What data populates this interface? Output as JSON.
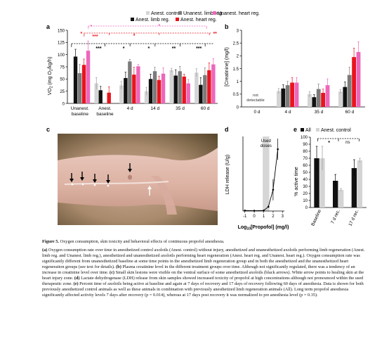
{
  "legend_top": {
    "row1": [
      {
        "label": "Anest. control",
        "color": "#d4d4d4"
      },
      {
        "label": "Unanest. limb reg.",
        "color": "#7b7b7b"
      },
      {
        "label": "Unanest. heart reg.",
        "color": "#ee66bb"
      }
    ],
    "row2": [
      {
        "label": "Anest. limb reg.",
        "color": "#111111"
      },
      {
        "label": "Anest. heart reg.",
        "color": "#e8141e"
      }
    ]
  },
  "panel_a": {
    "letter": "a",
    "ylabel_main": "VO",
    "ylabel_sub2": "2",
    "ylabel_rest": " (mg O",
    "ylabel_sub2b": "2",
    "ylabel_tail": "/kg/h)",
    "yticks": [
      "0",
      "25",
      "50",
      "75",
      "100",
      "125",
      "150"
    ],
    "significance": {
      "single": "*",
      "double": "**",
      "triple": "***"
    },
    "chart_data": {
      "type": "bar",
      "categories": [
        "Unanest. baseline",
        "Anest. baseline",
        "4 d",
        "14 d",
        "35 d",
        "60 d"
      ],
      "ylim": [
        0,
        150
      ],
      "series": [
        {
          "name": "Anest. control",
          "color": "#d4d4d4",
          "values": [
            null,
            41,
            37,
            25,
            68,
            63
          ],
          "err": [
            null,
            12,
            8,
            8,
            4,
            8
          ]
        },
        {
          "name": "Anest. limb reg.",
          "color": "#111111",
          "values": [
            96,
            27,
            52,
            50,
            57,
            38
          ],
          "err": [
            15,
            8,
            12,
            10,
            12,
            15
          ]
        },
        {
          "name": "Unanest. limb reg.",
          "color": "#7b7b7b",
          "values": [
            62,
            null,
            86,
            66,
            66,
            58
          ],
          "err": [
            18,
            null,
            4,
            8,
            10,
            15
          ]
        },
        {
          "name": "Anest. heart reg.",
          "color": "#e8141e",
          "values": [
            79,
            22,
            59,
            48,
            55,
            68
          ],
          "err": [
            12,
            12,
            15,
            8,
            5,
            15
          ]
        },
        {
          "name": "Unanest. heart reg.",
          "color": "#ee66bb",
          "values": [
            108,
            null,
            76,
            61,
            41,
            80
          ],
          "err": [
            20,
            null,
            4,
            12,
            8,
            12
          ]
        }
      ]
    }
  },
  "panel_b": {
    "letter": "b",
    "ylabel": "[Creatinine] (mg/l)",
    "yticks": [
      "0",
      "0.5",
      "1",
      "1.5",
      "2",
      "2.5",
      "3"
    ],
    "not_detectable": [
      "not",
      "detectable"
    ],
    "chart_data": {
      "type": "bar",
      "categories": [
        "0 d",
        "4 d",
        "35 d",
        "60 d"
      ],
      "ylim": [
        0,
        3
      ],
      "series": [
        {
          "name": "Anest. control",
          "color": "#d4d4d4",
          "values": [
            null,
            0.62,
            0.5,
            0.6
          ],
          "err": [
            null,
            0.1,
            0.1,
            0.08
          ]
        },
        {
          "name": "Anest. limb reg.",
          "color": "#111111",
          "values": [
            null,
            0.72,
            0.38,
            0.78
          ],
          "err": [
            null,
            0.15,
            0.1,
            0.2
          ]
        },
        {
          "name": "Unanest. limb reg.",
          "color": "#7b7b7b",
          "values": [
            null,
            0.85,
            0.7,
            1.25
          ],
          "err": [
            null,
            0.15,
            0.2,
            0.3
          ]
        },
        {
          "name": "Anest. heart reg.",
          "color": "#e8141e",
          "values": [
            null,
            0.95,
            0.55,
            1.95
          ],
          "err": [
            null,
            0.2,
            0.15,
            0.35
          ]
        },
        {
          "name": "Unanest. heart reg.",
          "color": "#ee66bb",
          "values": [
            null,
            0.95,
            0.85,
            2.15
          ],
          "err": [
            null,
            0.2,
            0.25,
            0.4
          ]
        }
      ]
    }
  },
  "panel_c": {
    "letter": "c"
  },
  "panel_d": {
    "letter": "d",
    "ylabel": "LDH release (U/g)",
    "xlabel_main": "Log",
    "xlabel_sub": "10",
    "xlabel_tail": "[Propofol] (mg/l)",
    "band_label": [
      "Used",
      "doses"
    ],
    "xticks": [
      "-1",
      "0",
      "1",
      "2",
      "3"
    ],
    "chart_data": {
      "type": "line",
      "x": [
        -1,
        0,
        1,
        1.5,
        2,
        2.5
      ],
      "y": [
        0.05,
        0.03,
        0.05,
        0.4,
        2.0,
        5.8
      ],
      "err": [
        0,
        0,
        0,
        0.1,
        1.0,
        1.0
      ],
      "xlim": [
        -1.2,
        3.2
      ],
      "band": [
        0.9,
        1.6
      ]
    }
  },
  "panel_e": {
    "letter": "e",
    "legend": [
      {
        "label": "All",
        "color": "#111111"
      },
      {
        "label": "Anest. control",
        "color": "#d4d4d4"
      }
    ],
    "ylabel": "% active time",
    "yticks": [
      "0",
      "10",
      "20",
      "30",
      "40",
      "50",
      "60",
      "70",
      "80",
      "90",
      "100"
    ],
    "sig": [
      "*",
      "ns"
    ],
    "chart_data": {
      "type": "bar",
      "categories": [
        "Baseline",
        "7 d rec.",
        "17 d rec."
      ],
      "ylim": [
        0,
        100
      ],
      "series": [
        {
          "name": "All",
          "color": "#111111",
          "values": [
            70,
            38,
            56
          ],
          "err": [
            17,
            9,
            12
          ]
        },
        {
          "name": "Anest. control",
          "color": "#d4d4d4",
          "values": [
            70,
            25,
            67
          ],
          "err": [
            17,
            2,
            3
          ]
        }
      ]
    }
  },
  "caption": {
    "title_bold": "Figure 5.",
    "title_rest": "  Oxygen consumption, skin toxicity and behavioral effects of continuous propofol anesthesia.",
    "a_label": "(a)",
    "a_text": " Oxygen consumption rate over time in anesthetized control axolotls (Anest. control) without injury, anesthetized and unanesthetized axolotls performing limb regeneration (Anest. limb reg. and Unanest. limb reg.), anesthetized and unanesthetized axolotls performing heart regeneration (Anest. heart reg. and Unanest. heart reg.). Oxygen consumption rate was significantly different from unanesthetized baseline at some time points in the anesthetized limb regeneration group and in both the anesthetized and the unanesthetized heart regeneration groups (see text for details).",
    "b_label": "(b)",
    "b_text": " Plasma creatinine level in the different treatment groups over time. Although not significantly regulated, there was a tendency of an increase in creatinine level over time.",
    "c_label": "(c)",
    "c_text": " Small skin lesions were visible on the ventral surface of some anesthetized axolotls (black arrows). White arrow points to healing skin at the heart injury zone.",
    "d_label": "(d)",
    "d_text": " Lactate dehydrogenase (LDH) release from skin samples showed increased toxicity of propofol at high concentrations although not pronounced within the used therapeutic zone.",
    "e_label": "(e)",
    "e_text": " Percent time of axolotls being active at baseline and again at 7 days of recovery and 17 days of recovery following 60 days of anesthesia. Data is shown for both previously anesthetized control animals as well as these animals in combination with previously anesthetized limb regeneration animals (All). Long term propofol anesthesia significantly affected activity levels 7 days after recovery (p = 0.014), whereas at 17 days post recovery it was normalized to pre anesthesia level (p = 0.35)."
  }
}
